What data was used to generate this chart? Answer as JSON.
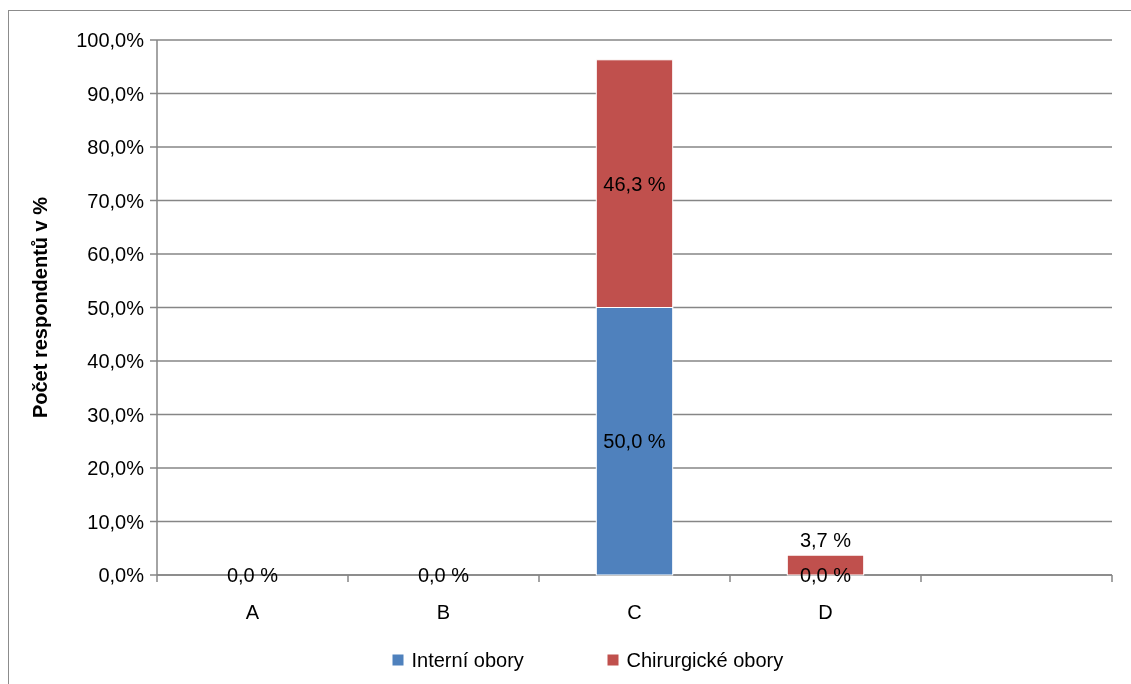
{
  "chart_data": {
    "type": "bar",
    "stacked": true,
    "ylabel": "Počet respondentů v %",
    "categories": [
      "A",
      "B",
      "C",
      "D",
      null
    ],
    "series": [
      {
        "name": "Interní obory",
        "color": "#4f81bd",
        "values": [
          0,
          0,
          50,
          0,
          null
        ],
        "value_labels": [
          "0,0 %",
          "0,0 %",
          "50,0 %",
          "0,0 %",
          null
        ]
      },
      {
        "name": "Chirurgické obory",
        "color": "#c0504d",
        "values": [
          0,
          0,
          46.3,
          3.7,
          null
        ],
        "value_labels": [
          null,
          null,
          "46,3 %",
          "3,7 %",
          null
        ]
      }
    ],
    "ylim": [
      0,
      100
    ],
    "yticks": [
      {
        "value": 0,
        "label": "0,0%"
      },
      {
        "value": 10,
        "label": "10,0%"
      },
      {
        "value": 20,
        "label": "20,0%"
      },
      {
        "value": 30,
        "label": "30,0%"
      },
      {
        "value": 40,
        "label": "40,0%"
      },
      {
        "value": 50,
        "label": "50,0%"
      },
      {
        "value": 60,
        "label": "60,0%"
      },
      {
        "value": 70,
        "label": "70,0%"
      },
      {
        "value": 80,
        "label": "80,0%"
      },
      {
        "value": 90,
        "label": "90,0%"
      },
      {
        "value": 100,
        "label": "100,0%"
      }
    ],
    "grid": "y",
    "legend": "bottom"
  }
}
